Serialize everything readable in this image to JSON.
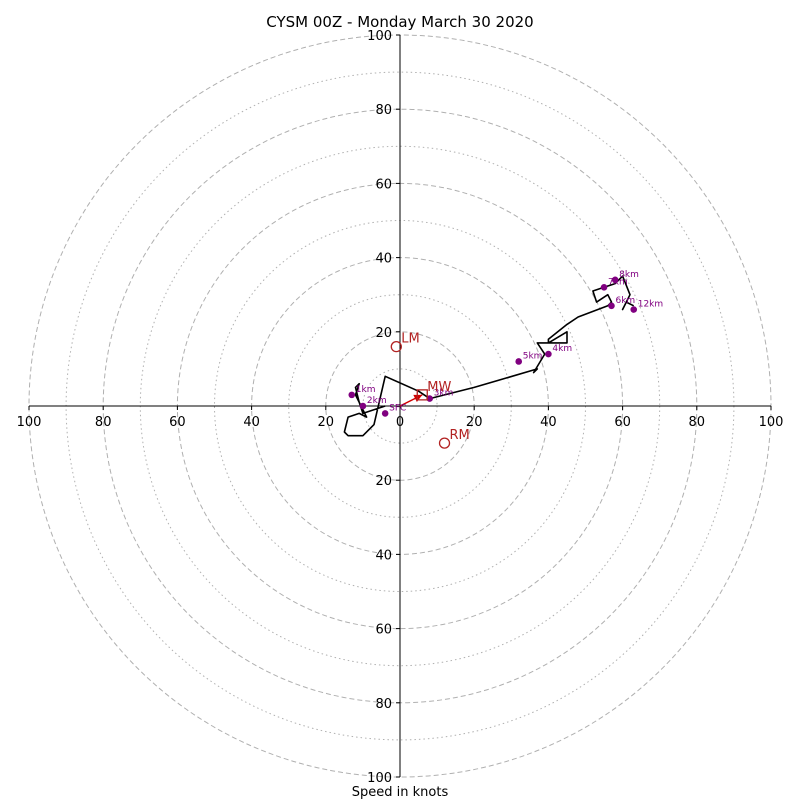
{
  "chart_data": {
    "type": "hodograph",
    "title": "CYSM 00Z - Monday March 30 2020",
    "xlabel": "Speed in knots",
    "axis_range": [
      -100,
      100
    ],
    "ring_values_dashed": [
      20,
      40,
      60,
      80,
      100
    ],
    "ring_values_dotted": [
      10,
      30,
      50,
      70,
      90
    ],
    "x_tick_labels": [
      "100",
      "80",
      "60",
      "40",
      "20",
      "0",
      "20",
      "40",
      "60",
      "80",
      "100"
    ],
    "y_tick_labels": [
      "100",
      "80",
      "60",
      "40",
      "20",
      "",
      "20",
      "40",
      "60",
      "80",
      "100"
    ],
    "x_tick_values": [
      -100,
      -80,
      -60,
      -40,
      -20,
      0,
      20,
      40,
      60,
      80,
      100
    ],
    "y_tick_values": [
      100,
      80,
      60,
      40,
      20,
      0,
      -20,
      -40,
      -60,
      -80,
      -100
    ],
    "wind_trace": [
      [
        -4,
        0
      ],
      [
        -10,
        -2
      ],
      [
        -11,
        1
      ],
      [
        -12,
        5
      ],
      [
        -11,
        6
      ],
      [
        -12,
        3
      ],
      [
        -9,
        -3
      ],
      [
        -11,
        -2
      ],
      [
        -14,
        -3
      ],
      [
        -15,
        -7
      ],
      [
        -14,
        -8
      ],
      [
        -10,
        -8
      ],
      [
        -7,
        -5
      ],
      [
        -4,
        8
      ],
      [
        5,
        4
      ],
      [
        8,
        2
      ],
      [
        20,
        5
      ],
      [
        37,
        10
      ],
      [
        36,
        9
      ],
      [
        39,
        14
      ],
      [
        37,
        17
      ],
      [
        43,
        17
      ],
      [
        45,
        17
      ],
      [
        45,
        20
      ],
      [
        40,
        17
      ],
      [
        40,
        18
      ],
      [
        45,
        22
      ],
      [
        48,
        24
      ],
      [
        56,
        27
      ],
      [
        57,
        28
      ],
      [
        56,
        30
      ],
      [
        53,
        28
      ],
      [
        52,
        31
      ],
      [
        55,
        32
      ],
      [
        58,
        33
      ],
      [
        60,
        35
      ],
      [
        62,
        30
      ],
      [
        60,
        26
      ],
      [
        61,
        28
      ],
      [
        63,
        27
      ]
    ],
    "height_markers": [
      {
        "label": "SFC",
        "x": -4,
        "y": -2
      },
      {
        "label": "1km",
        "x": -13,
        "y": 3
      },
      {
        "label": "2km",
        "x": -10,
        "y": 0
      },
      {
        "label": "3km",
        "x": 8,
        "y": 2
      },
      {
        "label": "4km",
        "x": 40,
        "y": 14
      },
      {
        "label": "5km",
        "x": 32,
        "y": 12
      },
      {
        "label": "6km",
        "x": 57,
        "y": 27
      },
      {
        "label": "7km",
        "x": 55,
        "y": 32
      },
      {
        "label": "8km",
        "x": 58,
        "y": 34
      },
      {
        "label": "12km",
        "x": 63,
        "y": 26
      }
    ],
    "storm_motion": [
      {
        "label": "LM",
        "x": -1,
        "y": 16,
        "marker": "circle"
      },
      {
        "label": "MW",
        "x": 6,
        "y": 3,
        "marker": "square"
      },
      {
        "label": "RM",
        "x": 12,
        "y": -10,
        "marker": "circle"
      }
    ],
    "mean_wind_vector": {
      "from": [
        0,
        0
      ],
      "to": [
        6,
        3
      ]
    },
    "grid": true,
    "colors": {
      "trace": "#000000",
      "marker": "#800080",
      "storm_motion": "#b22222",
      "ring": "#b0b0b0",
      "vector": "#d00000"
    }
  }
}
